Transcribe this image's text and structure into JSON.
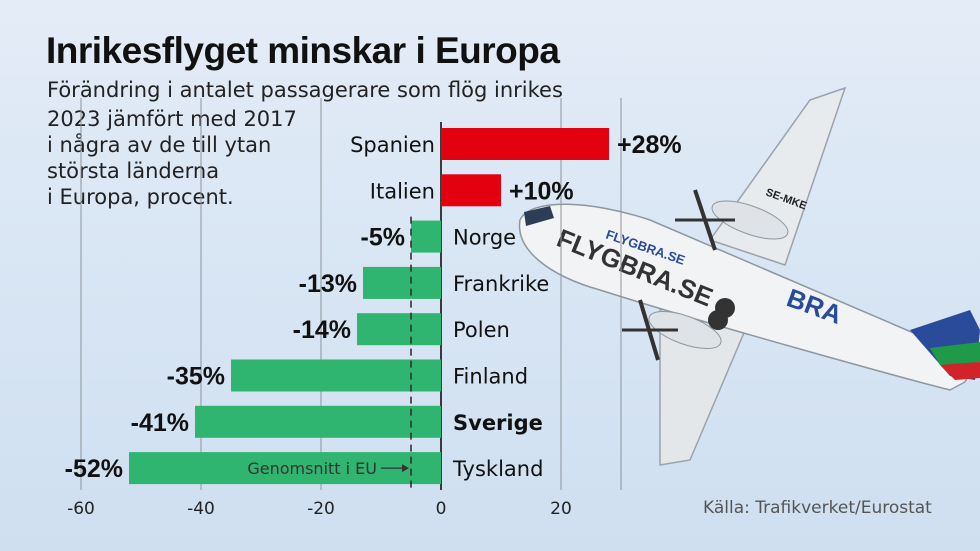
{
  "chart_data": {
    "type": "bar",
    "orientation": "horizontal",
    "title": "Inrikesflyget minskar i Europa",
    "subtitle_lines": [
      "Förändring i antalet passagerare som flög inrikes",
      "2023 jämfört med 2017",
      "i några av de till ytan",
      "största länderna",
      "i Europa, procent."
    ],
    "categories": [
      "Spanien",
      "Italien",
      "Norge",
      "Frankrike",
      "Polen",
      "Finland",
      "Sverige",
      "Tyskland"
    ],
    "values": [
      28,
      10,
      -5,
      -13,
      -14,
      -35,
      -41,
      -52
    ],
    "value_labels": [
      "+28%",
      "+10%",
      "-5%",
      "-13%",
      "-14%",
      "-35%",
      "-41%",
      "-52%"
    ],
    "highlight_category": "Sverige",
    "xlim": [
      -60,
      30
    ],
    "xticks": [
      -60,
      -40,
      -20,
      0,
      20
    ],
    "xtick_labels": [
      "-60",
      "-40",
      "-20",
      "0",
      "20"
    ],
    "grid": true,
    "colors": {
      "positive": "#e3000f",
      "negative": "#2fb56f",
      "reference_line": "#333333"
    },
    "reference_line": {
      "value": -5,
      "label": "Genomsnitt i EU"
    },
    "source": "Källa: Trafikverket/Eurostat"
  },
  "photo": {
    "subject": "airplane-photo",
    "livery_text": [
      "FLYGBRA.SE",
      "FLYGBRA.SE",
      "BRA"
    ],
    "registration": "SE-MKE"
  }
}
